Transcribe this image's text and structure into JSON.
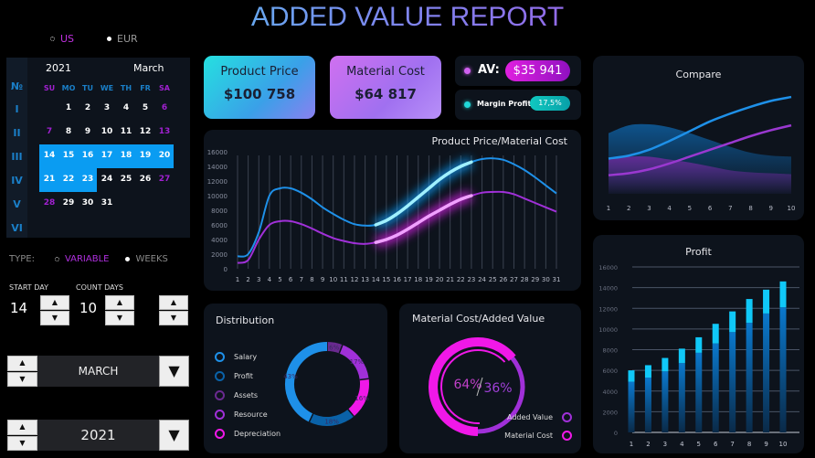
{
  "title": "ADDED VALUE REPORT",
  "currency": {
    "options": [
      "US",
      "EUR"
    ],
    "selected": "US"
  },
  "calendar": {
    "year": "2021",
    "month": "March",
    "week_header": "№",
    "weeks": [
      "I",
      "II",
      "III",
      "IV",
      "V",
      "VI"
    ],
    "day_headers": [
      "SU",
      "MO",
      "TU",
      "WE",
      "TH",
      "FR",
      "SA"
    ],
    "rows": [
      [
        "",
        "1",
        "2",
        "3",
        "4",
        "5",
        "6"
      ],
      [
        "7",
        "8",
        "9",
        "10",
        "11",
        "12",
        "13"
      ],
      [
        "14",
        "15",
        "16",
        "17",
        "18",
        "19",
        "20"
      ],
      [
        "21",
        "22",
        "23",
        "24",
        "25",
        "26",
        "27"
      ],
      [
        "28",
        "29",
        "30",
        "31",
        "",
        "",
        ""
      ],
      [
        "",
        "",
        "",
        "",
        "",
        "",
        ""
      ]
    ],
    "selected_range": [
      "14",
      "23"
    ]
  },
  "type": {
    "label": "TYPE:",
    "options": [
      "VARIABLE",
      "WEEKS"
    ],
    "selected": "VARIABLE"
  },
  "start_day": {
    "label": "START DAY",
    "value": "14"
  },
  "count_days": {
    "label": "COUNT DAYS",
    "value": "10"
  },
  "month_select": {
    "value": "MARCH"
  },
  "year_select": {
    "value": "2021"
  },
  "cards": {
    "product_price": {
      "label": "Product Price",
      "value": "$100 758"
    },
    "material_cost": {
      "label": "Material Cost",
      "value": "$64 817"
    },
    "av": {
      "label": "AV:",
      "value": "$35 941"
    },
    "margin": {
      "label": "Margin Profit",
      "value": "17,5%"
    }
  },
  "colors": {
    "blue": "#1e90e8",
    "purple": "#a030d8",
    "magenta": "#f018e8",
    "cyan": "#10c8f8",
    "dark_blue": "#0a62a8"
  },
  "chart_data": [
    {
      "type": "line",
      "title": "Product Price/Material Cost",
      "ylim": [
        0,
        16000
      ],
      "yticks": [
        "0",
        "2000",
        "4000",
        "6000",
        "8000",
        "10000",
        "12000",
        "14000",
        "16000"
      ],
      "x": [
        1,
        2,
        3,
        4,
        5,
        6,
        7,
        8,
        9,
        10,
        11,
        12,
        13,
        14,
        15,
        16,
        17,
        18,
        19,
        20,
        21,
        22,
        23,
        24,
        25,
        26,
        27,
        28,
        29,
        30,
        31
      ],
      "highlight": [
        14,
        23
      ],
      "series": [
        {
          "values": [
            1700,
            2000,
            5000,
            10000,
            11000,
            11000,
            10400,
            9500,
            8400,
            7500,
            6700,
            6100,
            5900,
            6000,
            6600,
            7500,
            8600,
            9800,
            11000,
            12200,
            13200,
            14000,
            14600,
            15000,
            15100,
            14900,
            14300,
            13500,
            12500,
            11400,
            10300
          ]
        },
        {
          "values": [
            800,
            1200,
            4000,
            6000,
            6500,
            6500,
            6100,
            5500,
            4800,
            4200,
            3800,
            3500,
            3400,
            3600,
            4000,
            4600,
            5400,
            6300,
            7200,
            8000,
            8800,
            9500,
            10000,
            10400,
            10500,
            10500,
            10200,
            9600,
            9000,
            8400,
            7800
          ]
        }
      ]
    },
    {
      "type": "area",
      "title": "Compare",
      "x": [
        1,
        2,
        3,
        4,
        5,
        6,
        7,
        8,
        9,
        10
      ],
      "series": [
        {
          "kind": "area",
          "values": [
            62,
            70,
            71,
            68,
            62,
            55,
            48,
            42,
            39,
            38
          ]
        },
        {
          "kind": "area",
          "values": [
            36,
            38,
            38,
            35,
            32,
            28,
            24,
            22,
            21,
            20
          ]
        },
        {
          "kind": "line",
          "values": [
            36,
            39,
            45,
            54,
            64,
            74,
            82,
            89,
            95,
            99
          ]
        },
        {
          "kind": "line",
          "values": [
            19,
            21,
            25,
            31,
            38,
            45,
            52,
            59,
            65,
            70
          ]
        }
      ]
    },
    {
      "type": "bar",
      "title": "Profit",
      "stacked": true,
      "ylim": [
        0,
        16000
      ],
      "yticks": [
        "0",
        "2000",
        "4000",
        "6000",
        "8000",
        "10000",
        "12000",
        "14000",
        "16000"
      ],
      "categories": [
        "1",
        "2",
        "3",
        "4",
        "5",
        "6",
        "7",
        "8",
        "9",
        "10"
      ],
      "series": [
        {
          "values": [
            4900,
            5300,
            5900,
            6700,
            7700,
            8600,
            9700,
            10600,
            11500,
            12100
          ]
        },
        {
          "values": [
            1100,
            1200,
            1300,
            1400,
            1500,
            1900,
            2000,
            2300,
            2300,
            2500
          ]
        }
      ]
    },
    {
      "type": "pie",
      "title": "Distribution",
      "donut": true,
      "slices": [
        {
          "name": "Assets",
          "value": 6,
          "label": "6%"
        },
        {
          "name": "Resource",
          "value": 17,
          "label": "17%"
        },
        {
          "name": "Depreciation",
          "value": 16,
          "label": "16%"
        },
        {
          "name": "Profit",
          "value": 18,
          "label": "18%"
        },
        {
          "name": "Salary",
          "value": 43,
          "label": "43%"
        }
      ],
      "legend": [
        "Salary",
        "Profit",
        "Assets",
        "Resource",
        "Depreciation"
      ]
    },
    {
      "type": "pie",
      "title": "Material Cost/Added Value",
      "donut": true,
      "slices": [
        {
          "name": "Material Cost",
          "value": 64,
          "label": "64%"
        },
        {
          "name": "Added Value",
          "value": 36,
          "label": "36%"
        }
      ],
      "legend": [
        "Added Value",
        "Material Cost"
      ]
    }
  ]
}
